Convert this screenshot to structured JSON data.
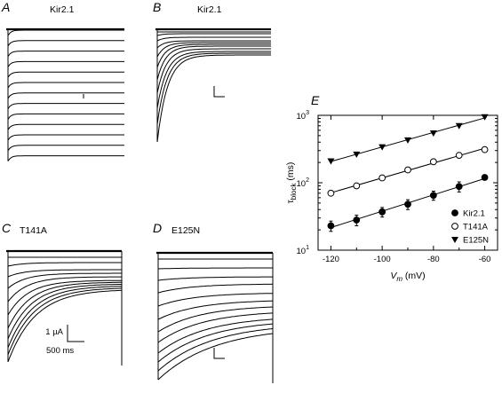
{
  "panels": [
    {
      "letter": "A",
      "title": "Kir2.1"
    },
    {
      "letter": "B",
      "title": "Kir2.1"
    },
    {
      "letter": "C",
      "title": "T141A"
    },
    {
      "letter": "D",
      "title": "E125N"
    }
  ],
  "scale_bar": {
    "current": "1 µA",
    "time": "500 ms"
  },
  "chart_data": {
    "type": "scatter",
    "panel_letter": "E",
    "xlabel_main": "V",
    "xlabel_sub": "m",
    "xlabel_units": "(mV)",
    "ylabel_main": "τ",
    "ylabel_sub": "block",
    "ylabel_units": "(ms)",
    "xlim": [
      -125,
      -55
    ],
    "ylim": [
      10,
      1000
    ],
    "yscale": "log",
    "x_ticks": [
      -120,
      -100,
      -80,
      -60
    ],
    "y_ticks": [
      {
        "value": 10,
        "base": "10",
        "exp": "1"
      },
      {
        "value": 100,
        "base": "10",
        "exp": "2"
      },
      {
        "value": 1000,
        "base": "10",
        "exp": "3"
      }
    ],
    "legend_position": "bottom-right",
    "series": [
      {
        "name": "Kir2.1",
        "marker": "filled-circle",
        "x": [
          -120,
          -110,
          -100,
          -90,
          -80,
          -70,
          -60
        ],
        "y": [
          23,
          28,
          37,
          48,
          65,
          88,
          120
        ],
        "err": [
          4,
          5,
          6,
          8,
          10,
          15,
          10
        ]
      },
      {
        "name": "T141A",
        "marker": "open-circle",
        "x": [
          -120,
          -110,
          -100,
          -90,
          -80,
          -70,
          -60
        ],
        "y": [
          70,
          90,
          118,
          155,
          205,
          255,
          310
        ],
        "err": [
          0,
          0,
          0,
          0,
          0,
          0,
          0
        ]
      },
      {
        "name": "E125N",
        "marker": "filled-triangle-down",
        "x": [
          -120,
          -110,
          -100,
          -90,
          -80,
          -70,
          -60
        ],
        "y": [
          210,
          265,
          340,
          430,
          545,
          700,
          950
        ],
        "err": [
          0,
          0,
          0,
          0,
          0,
          0,
          0
        ]
      }
    ]
  }
}
